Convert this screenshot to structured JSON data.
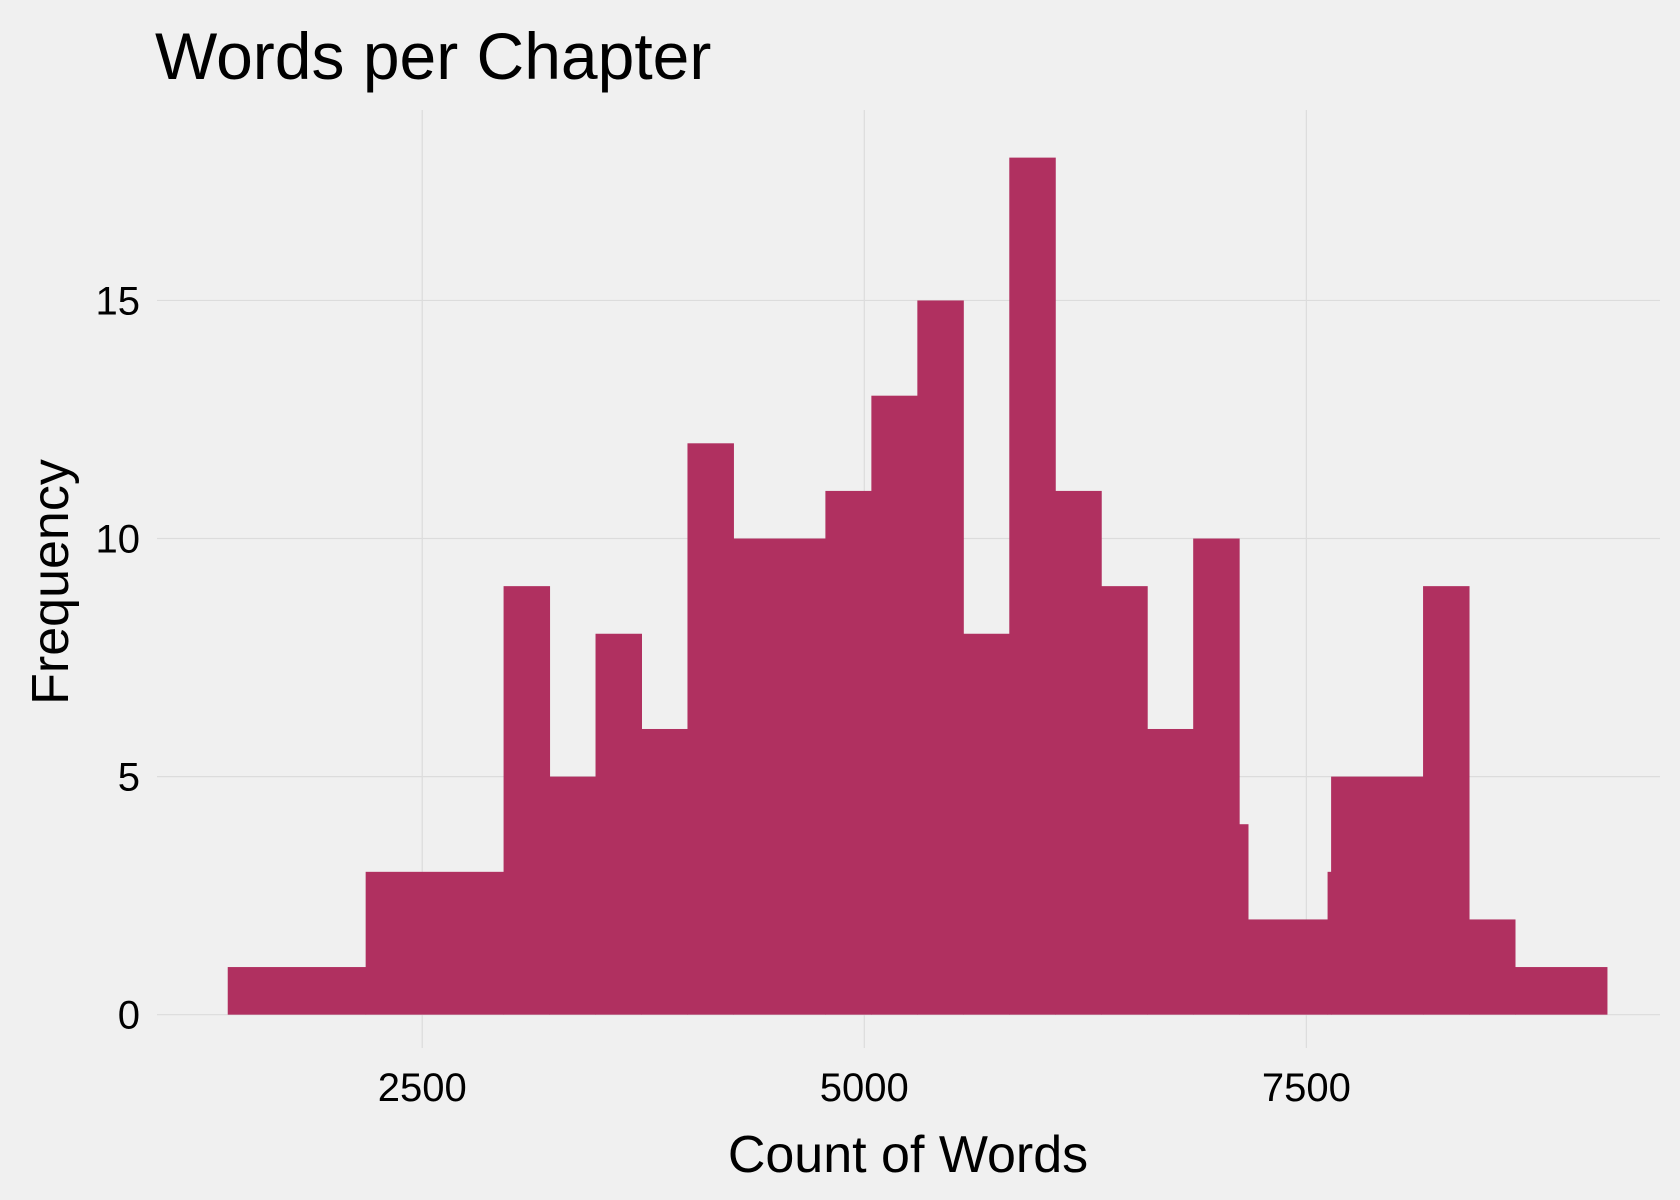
{
  "chart_data": {
    "type": "bar",
    "title": "Words per Chapter",
    "xlabel": "Count of Words",
    "ylabel": "Frequency",
    "bar_color": "#b03060",
    "background": "#f0f0f0",
    "grid": true,
    "xlim": [
      1000,
      9500
    ],
    "ylim": [
      -0.7,
      19
    ],
    "x_ticks": [
      2500,
      5000,
      7500
    ],
    "y_ticks": [
      0,
      5,
      10,
      15
    ],
    "bins": [
      {
        "x0": 1400,
        "x1": 2180,
        "count": 1
      },
      {
        "x0": 2180,
        "x1": 2960,
        "count": 3
      },
      {
        "x0": 2960,
        "x1": 3220,
        "count": 9
      },
      {
        "x0": 3220,
        "x1": 3480,
        "count": 5
      },
      {
        "x0": 3480,
        "x1": 3740,
        "count": 8
      },
      {
        "x0": 3740,
        "x1": 4000,
        "count": 6
      },
      {
        "x0": 4000,
        "x1": 4260,
        "count": 12
      },
      {
        "x0": 4260,
        "x1": 4780,
        "count": 10
      },
      {
        "x0": 4780,
        "x1": 5040,
        "count": 11
      },
      {
        "x0": 5040,
        "x1": 5300,
        "count": 13
      },
      {
        "x0": 5300,
        "x1": 5560,
        "count": 15
      },
      {
        "x0": 5560,
        "x1": 5820,
        "count": 8
      },
      {
        "x0": 5820,
        "x1": 6080,
        "count": 18
      },
      {
        "x0": 6080,
        "x1": 6340,
        "count": 11
      },
      {
        "x0": 6340,
        "x1": 6600,
        "count": 9
      },
      {
        "x0": 6600,
        "x1": 6860,
        "count": 6
      },
      {
        "x0": 6860,
        "x1": 7120,
        "count": 10
      },
      {
        "x0": 7120,
        "x1": 7170,
        "count": 4
      },
      {
        "x0": 7170,
        "x1": 7620,
        "count": 2
      },
      {
        "x0": 7620,
        "x1": 7640,
        "count": 3
      },
      {
        "x0": 7640,
        "x1": 8160,
        "count": 5
      },
      {
        "x0": 8160,
        "x1": 8420,
        "count": 9
      },
      {
        "x0": 8420,
        "x1": 8680,
        "count": 2
      },
      {
        "x0": 8680,
        "x1": 9200,
        "count": 1
      }
    ]
  }
}
